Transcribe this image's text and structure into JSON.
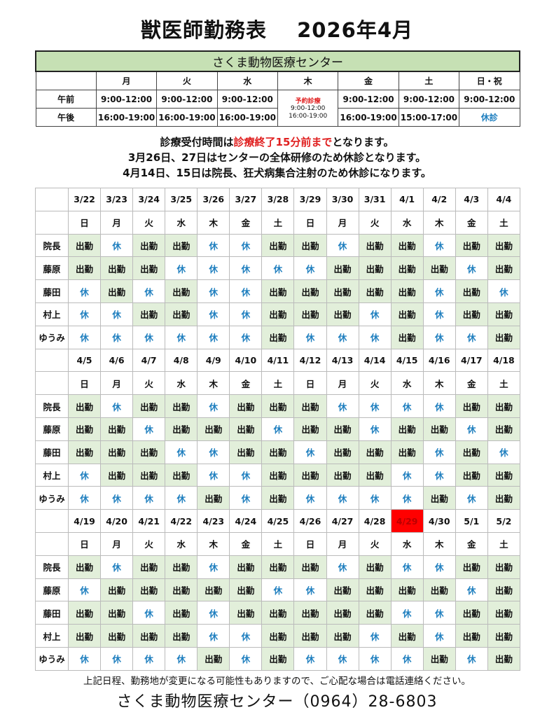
{
  "title": {
    "main": "獣医師勤務表",
    "month": "2026年4月"
  },
  "hours": {
    "clinic_name": "さくま動物医療センター",
    "days": [
      "月",
      "火",
      "水",
      "木",
      "金",
      "土",
      "日・祝"
    ],
    "am_label": "午前",
    "pm_label": "午後",
    "am": [
      "9:00-12:00",
      "9:00-12:00",
      "9:00-12:00",
      "",
      "9:00-12:00",
      "9:00-12:00",
      "9:00-12:00"
    ],
    "pm": [
      "16:00-19:00",
      "16:00-19:00",
      "16:00-19:00",
      "",
      "16:00-19:00",
      "15:00-17:00",
      "休診"
    ],
    "thursday": {
      "note": "予約診療",
      "am": "9:00-12:00",
      "pm": "16:00-19:00"
    }
  },
  "notes": {
    "line1_a": "診療受付時間は",
    "line1_b": "診療終了15分前まで",
    "line1_c": "となります。",
    "line2": "3月26日、27日はセンターの全体研修のため休診となります。",
    "line3": "4月14日、15日は院長、狂犬病集合注射のため休診になります。"
  },
  "colors": {
    "work_bg": "#e2efda",
    "off_text": "#1f7fbf",
    "holiday_bg": "#ff0000",
    "accent_red": "#e02020"
  },
  "staff": [
    "院長",
    "藤原",
    "藤田",
    "村上",
    "ゆうみ"
  ],
  "work_label": "出勤",
  "off_label": "休",
  "weeks": [
    {
      "dates": [
        "3/22",
        "3/23",
        "3/24",
        "3/25",
        "3/26",
        "3/27",
        "3/28",
        "3/29",
        "3/30",
        "3/31",
        "4/1",
        "4/2",
        "4/3",
        "4/4"
      ],
      "weekdays": [
        "日",
        "月",
        "火",
        "水",
        "木",
        "金",
        "土",
        "日",
        "月",
        "火",
        "水",
        "木",
        "金",
        "土"
      ],
      "rows": [
        [
          "出勤",
          "休",
          "出勤",
          "出勤",
          "休",
          "休",
          "出勤",
          "出勤",
          "休",
          "出勤",
          "出勤",
          "休",
          "出勤",
          "出勤"
        ],
        [
          "出勤",
          "出勤",
          "出勤",
          "休",
          "休",
          "休",
          "休",
          "休",
          "出勤",
          "出勤",
          "出勤",
          "出勤",
          "休",
          "出勤"
        ],
        [
          "休",
          "出勤",
          "休",
          "出勤",
          "休",
          "休",
          "出勤",
          "出勤",
          "出勤",
          "出勤",
          "出勤",
          "休",
          "出勤",
          "休"
        ],
        [
          "休",
          "休",
          "出勤",
          "出勤",
          "休",
          "休",
          "出勤",
          "出勤",
          "出勤",
          "休",
          "出勤",
          "休",
          "出勤",
          "出勤"
        ],
        [
          "休",
          "休",
          "休",
          "休",
          "休",
          "休",
          "出勤",
          "休",
          "休",
          "休",
          "出勤",
          "休",
          "休",
          "出勤"
        ]
      ]
    },
    {
      "dates": [
        "4/5",
        "4/6",
        "4/7",
        "4/8",
        "4/9",
        "4/10",
        "4/11",
        "4/12",
        "4/13",
        "4/14",
        "4/15",
        "4/16",
        "4/17",
        "4/18"
      ],
      "weekdays": [
        "日",
        "月",
        "火",
        "水",
        "木",
        "金",
        "土",
        "日",
        "月",
        "火",
        "水",
        "木",
        "金",
        "土"
      ],
      "rows": [
        [
          "出勤",
          "休",
          "出勤",
          "出勤",
          "休",
          "出勤",
          "出勤",
          "出勤",
          "休",
          "休",
          "休",
          "休",
          "出勤",
          "出勤"
        ],
        [
          "出勤",
          "出勤",
          "休",
          "出勤",
          "出勤",
          "出勤",
          "休",
          "出勤",
          "出勤",
          "休",
          "出勤",
          "出勤",
          "休",
          "出勤"
        ],
        [
          "出勤",
          "出勤",
          "出勤",
          "休",
          "休",
          "出勤",
          "出勤",
          "休",
          "出勤",
          "出勤",
          "出勤",
          "休",
          "出勤",
          "休"
        ],
        [
          "休",
          "出勤",
          "出勤",
          "出勤",
          "休",
          "休",
          "出勤",
          "出勤",
          "出勤",
          "出勤",
          "休",
          "休",
          "出勤",
          "出勤"
        ],
        [
          "休",
          "休",
          "休",
          "休",
          "出勤",
          "休",
          "出勤",
          "休",
          "休",
          "休",
          "休",
          "出勤",
          "休",
          "出勤"
        ]
      ]
    },
    {
      "dates": [
        "4/19",
        "4/20",
        "4/21",
        "4/22",
        "4/23",
        "4/24",
        "4/25",
        "4/26",
        "4/27",
        "4/28",
        "4/29",
        "4/30",
        "5/1",
        "5/2"
      ],
      "weekdays": [
        "日",
        "月",
        "火",
        "水",
        "木",
        "金",
        "土",
        "日",
        "月",
        "火",
        "水",
        "木",
        "金",
        "土"
      ],
      "holiday": "4/29",
      "rows": [
        [
          "出勤",
          "休",
          "出勤",
          "出勤",
          "休",
          "出勤",
          "出勤",
          "出勤",
          "休",
          "出勤",
          "休",
          "休",
          "出勤",
          "出勤"
        ],
        [
          "休",
          "出勤",
          "出勤",
          "出勤",
          "出勤",
          "出勤",
          "休",
          "休",
          "出勤",
          "出勤",
          "出勤",
          "出勤",
          "休",
          "出勤"
        ],
        [
          "出勤",
          "出勤",
          "休",
          "出勤",
          "休",
          "出勤",
          "出勤",
          "出勤",
          "出勤",
          "出勤",
          "休",
          "休",
          "出勤",
          "出勤"
        ],
        [
          "出勤",
          "出勤",
          "出勤",
          "出勤",
          "休",
          "休",
          "出勤",
          "出勤",
          "出勤",
          "休",
          "出勤",
          "休",
          "出勤",
          "出勤"
        ],
        [
          "休",
          "休",
          "休",
          "休",
          "出勤",
          "休",
          "出勤",
          "休",
          "休",
          "休",
          "休",
          "出勤",
          "休",
          "出勤"
        ]
      ]
    }
  ],
  "footer": "上記日程、勤務地が変更になる可能性もありますので、ご心配な場合は電話連絡ください。",
  "contact": "さくま動物医療センター（0964）28-6803"
}
